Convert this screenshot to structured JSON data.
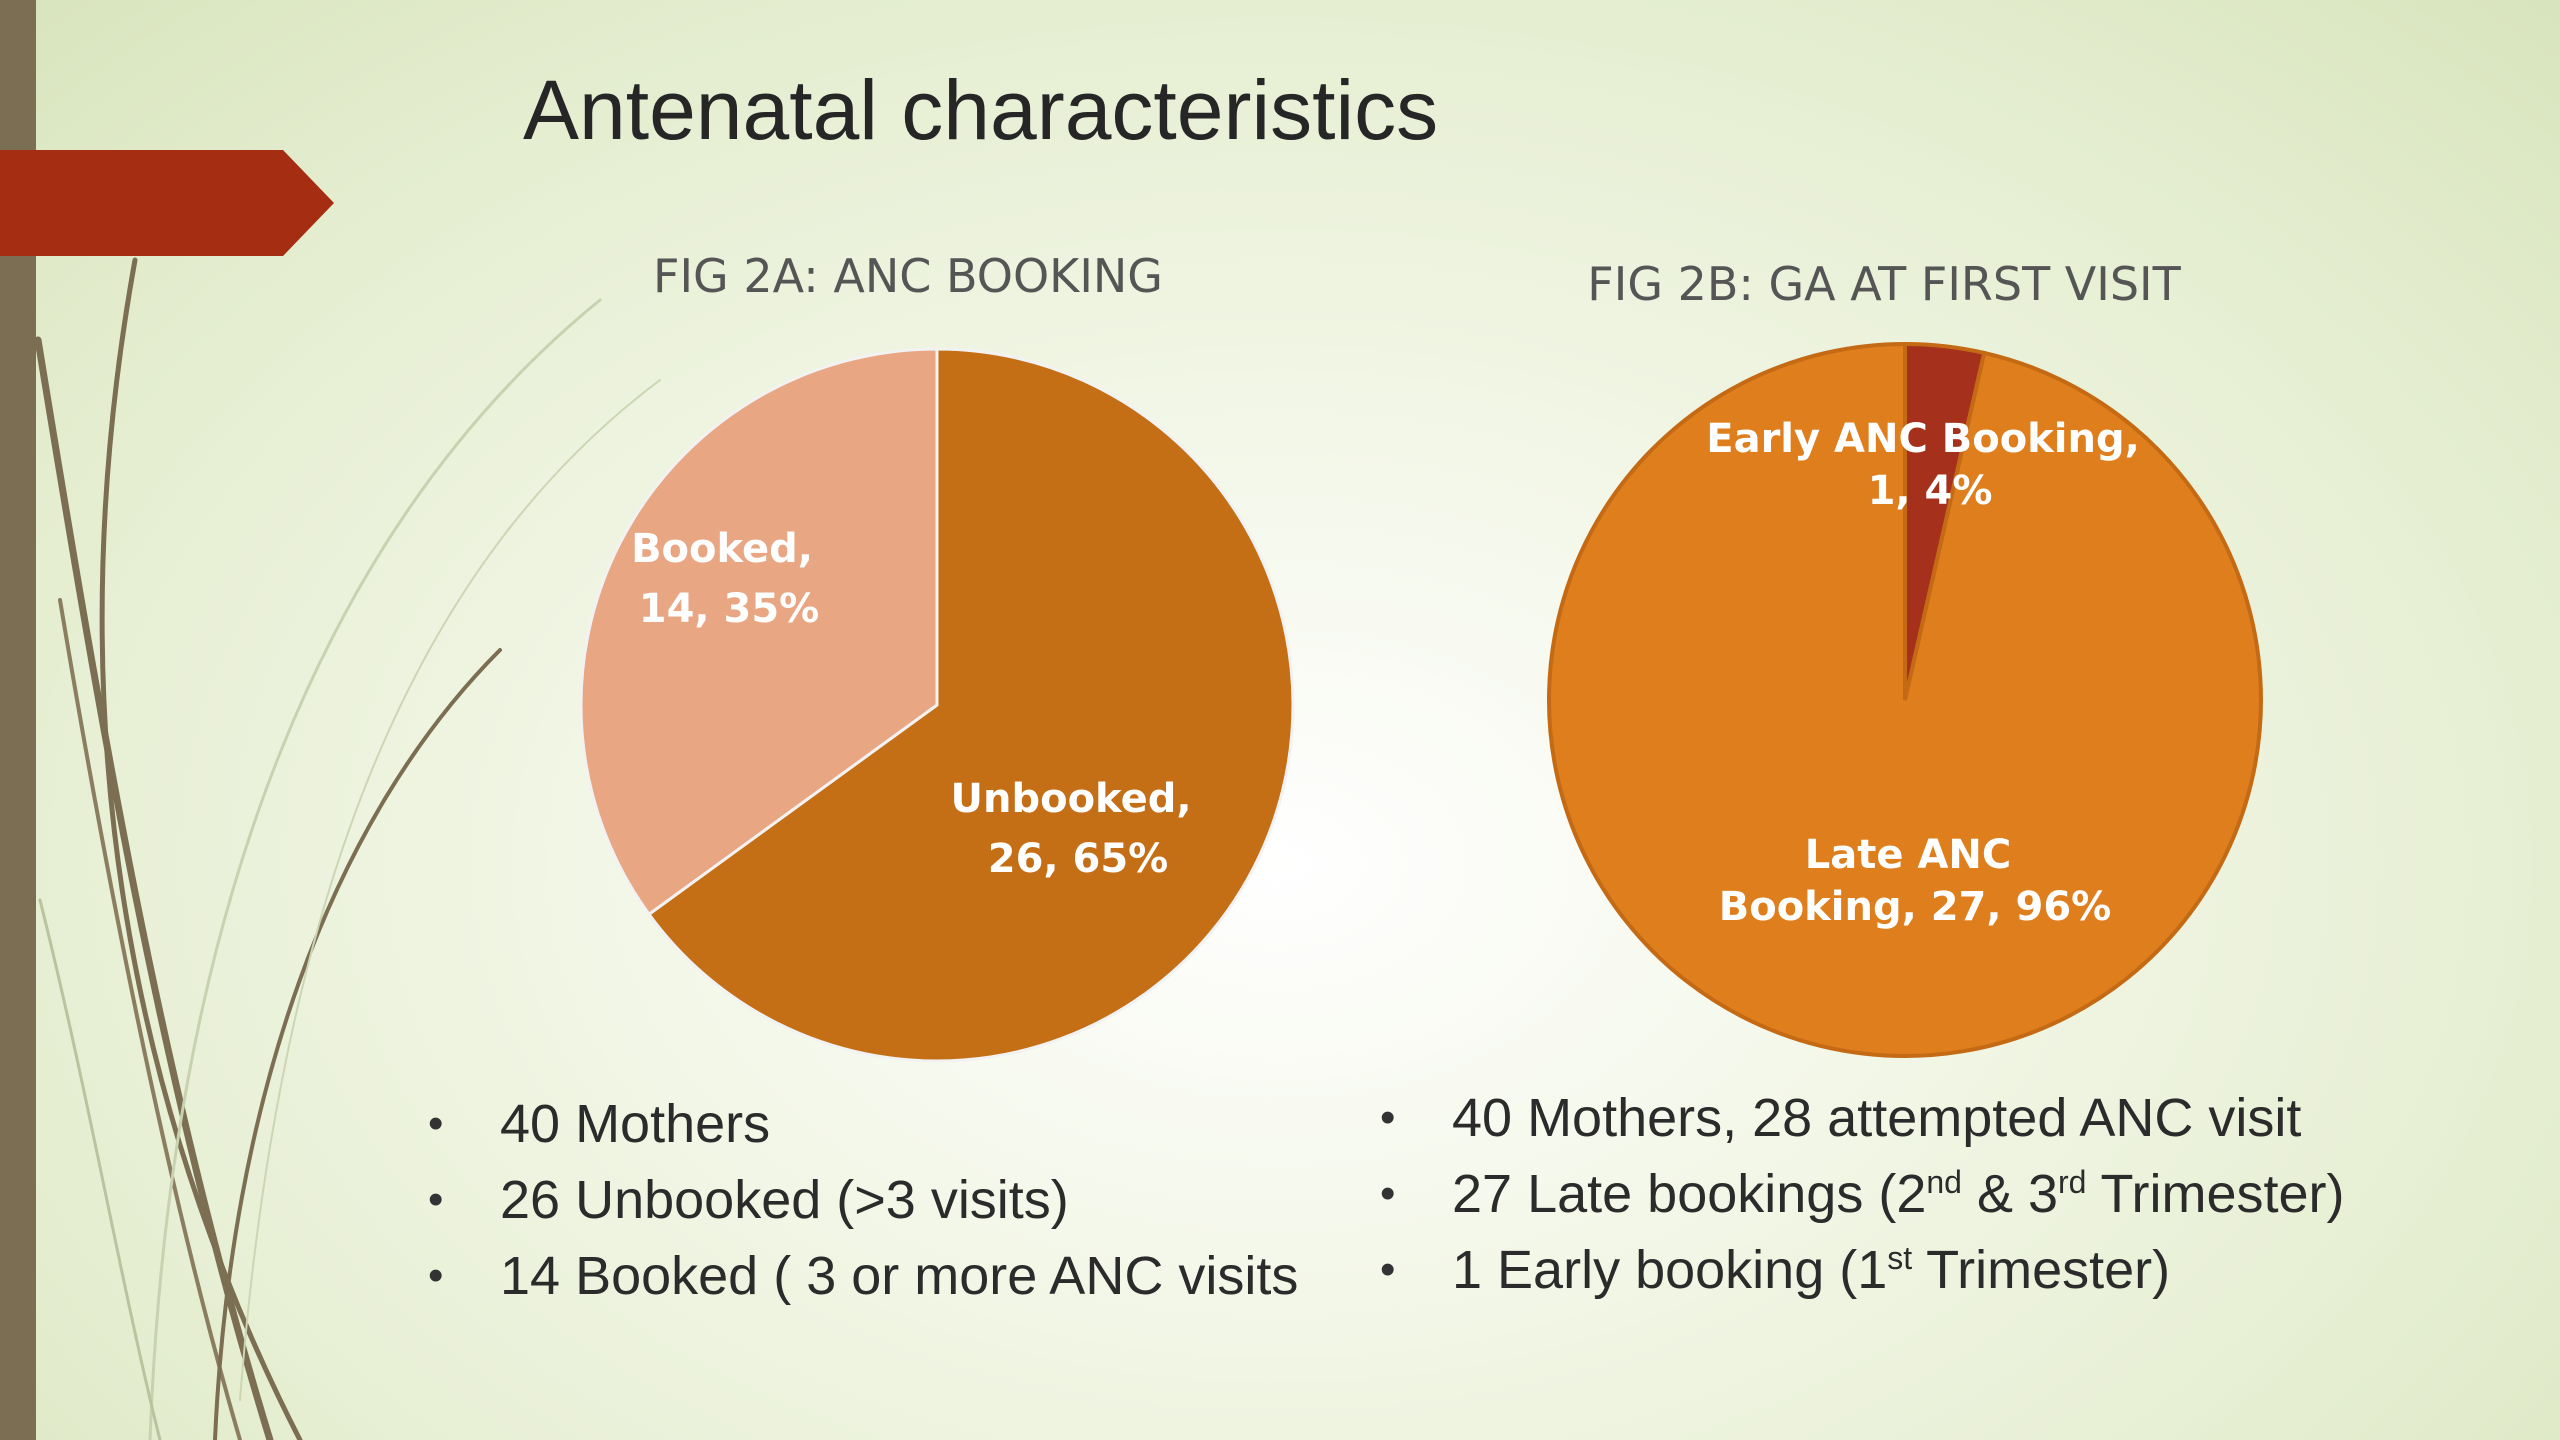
{
  "slide_title": "Antenatal characteristics",
  "colors": {
    "booked": "#e8a683",
    "unbooked": "#c46e16",
    "early": "#a5311d",
    "late": "#df7e1c",
    "accent_arrow": "#a52d12",
    "left_bar": "#7b6e52"
  },
  "chart_data": [
    {
      "type": "pie",
      "title": "FIG 2A: ANC BOOKING",
      "slices": [
        {
          "label": "Booked",
          "value": 14,
          "percent": 35,
          "text_line1": "Booked,",
          "text_line2": "14, 35%",
          "color": "#e8a683"
        },
        {
          "label": "Unbooked",
          "value": 26,
          "percent": 65,
          "text_line1": "Unbooked,",
          "text_line2": "26, 65%",
          "color": "#c46e16"
        }
      ]
    },
    {
      "type": "pie",
      "title": "FIG 2B: GA AT FIRST VISIT",
      "slices": [
        {
          "label": "Early ANC Booking",
          "value": 1,
          "percent": 4,
          "text_line1": "Early ANC Booking,",
          "text_line2": "1, 4%",
          "color": "#a5311d"
        },
        {
          "label": "Late ANC Booking",
          "value": 27,
          "percent": 96,
          "text_line1": "Late ANC",
          "text_line2": "Booking, 27, 96%",
          "color": "#df7e1c"
        }
      ]
    }
  ],
  "bullets_left": [
    "40 Mothers",
    "26 Unbooked (>3 visits)",
    "14 Booked ( 3 or more ANC visits"
  ],
  "bullets_right": {
    "item1": "40 Mothers, 28 attempted ANC visit",
    "item2": {
      "pre": "27 Late bookings (2",
      "sup1": "nd",
      "mid": " & 3",
      "sup2": "rd",
      "post": " Trimester)"
    },
    "item3": {
      "pre": "1 Early booking (1",
      "sup": "st",
      "post": " Trimester)"
    }
  }
}
